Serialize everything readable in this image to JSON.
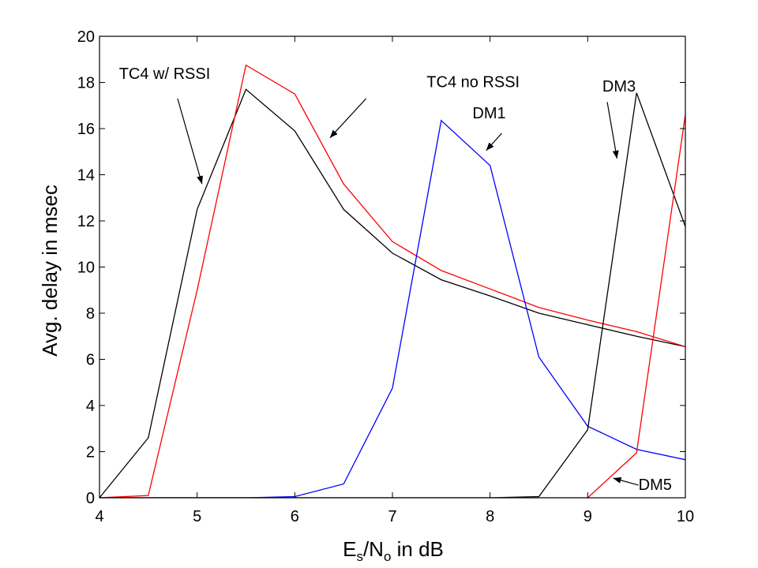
{
  "chart_data": {
    "type": "line",
    "title": "",
    "xlabel": {
      "base": "E",
      "sub1": "s",
      "mid": "/N",
      "sub2": "o",
      "tail": " in dB"
    },
    "ylabel": "Avg. delay in msec",
    "xlim": [
      4,
      10
    ],
    "ylim": [
      0,
      20
    ],
    "xticks": [
      4,
      5,
      6,
      7,
      8,
      9,
      10
    ],
    "yticks": [
      0,
      2,
      4,
      6,
      8,
      10,
      12,
      14,
      16,
      18,
      20
    ],
    "grid": false,
    "legend": "none",
    "series": [
      {
        "name": "TC4 w/ RSSI",
        "color": "#000000",
        "x": [
          4,
          4.5,
          5,
          5.5,
          6,
          6.5,
          7,
          7.5,
          8,
          8.5,
          9,
          9.5,
          10
        ],
        "y": [
          0,
          2.6,
          12.5,
          17.7,
          15.9,
          12.5,
          10.6,
          9.45,
          8.75,
          8.0,
          7.5,
          7.0,
          6.55
        ]
      },
      {
        "name": "TC4 no RSSI",
        "color": "#ff0000",
        "x": [
          4,
          4.5,
          5,
          5.5,
          6,
          6.5,
          7,
          7.5,
          8,
          8.5,
          9,
          9.5,
          10
        ],
        "y": [
          0,
          0.1,
          9.0,
          18.75,
          17.5,
          13.6,
          11.1,
          9.85,
          9.05,
          8.25,
          7.7,
          7.2,
          6.55
        ]
      },
      {
        "name": "DM1",
        "color": "#0000ff",
        "x": [
          4,
          4.5,
          5,
          5.5,
          6,
          6.5,
          7,
          7.5,
          8,
          8.5,
          9,
          9.5,
          10
        ],
        "y": [
          0,
          0,
          0,
          0,
          0.05,
          0.6,
          4.75,
          16.35,
          14.4,
          6.1,
          3.1,
          2.1,
          1.65
        ]
      },
      {
        "name": "DM3",
        "color": "#000000",
        "x": [
          4,
          4.5,
          5,
          5.5,
          6,
          6.5,
          7,
          7.5,
          8,
          8.5,
          9,
          9.5,
          10
        ],
        "y": [
          0,
          0,
          0,
          0,
          0,
          0,
          0,
          0,
          0,
          0.05,
          2.95,
          17.55,
          11.75
        ]
      },
      {
        "name": "DM5",
        "color": "#ff0000",
        "x": [
          4,
          4.5,
          5,
          5.5,
          6,
          6.5,
          7,
          7.5,
          8,
          8.5,
          9,
          9.5,
          10
        ],
        "y": [
          0,
          0,
          0,
          0,
          0,
          0,
          0,
          0,
          0,
          0,
          0,
          1.95,
          16.6
        ]
      }
    ],
    "annotations": [
      {
        "text": "TC4 w/ RSSI",
        "tx": 4.2,
        "ty": 18.15,
        "ax1": 4.8,
        "ay1": 17.3,
        "ax2": 5.05,
        "ay2": 13.6
      },
      {
        "text": "TC4 no RSSI",
        "tx": 7.35,
        "ty": 17.8,
        "ax1": 6.73,
        "ay1": 17.3,
        "ax2": 6.36,
        "ay2": 15.6
      },
      {
        "text": "DM1",
        "tx": 7.82,
        "ty": 16.45,
        "ax1": 8.12,
        "ay1": 15.8,
        "ax2": 7.96,
        "ay2": 15.05
      },
      {
        "text": "DM3",
        "tx": 9.15,
        "ty": 17.6,
        "ax1": 9.2,
        "ay1": 17.15,
        "ax2": 9.3,
        "ay2": 14.7
      },
      {
        "text": "DM5",
        "tx": 9.52,
        "ty": 0.35,
        "ax1": 9.52,
        "ay1": 0.55,
        "ax2": 9.26,
        "ay2": 0.85
      }
    ]
  }
}
